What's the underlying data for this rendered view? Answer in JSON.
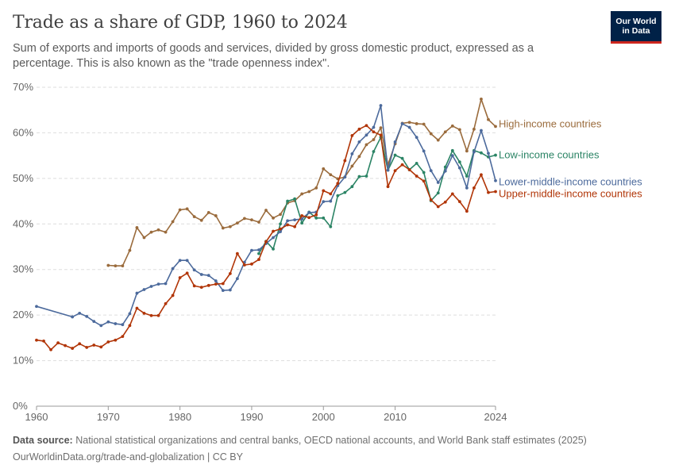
{
  "header": {
    "title": "Trade as a share of GDP, 1960 to 2024",
    "subtitle": "Sum of exports and imports of goods and services, divided by gross domestic product, expressed as a percentage. This is also known as the \"trade openness index\".",
    "logo_line1": "Our World",
    "logo_line2": "in Data"
  },
  "footer": {
    "source_label": "Data source:",
    "source_text": "National statistical organizations and central banks, OECD national accounts, and World Bank staff estimates (2025)",
    "url_text": "OurWorldinData.org/trade-and-globalization | CC BY"
  },
  "colors": {
    "High-income countries": "#9a6b3c",
    "Low-income countries": "#2b8465",
    "Lower-middle-income countries": "#4c6a9c",
    "Upper-middle-income countries": "#b13507",
    "grid": "#dddddd",
    "axis_text": "#666666"
  },
  "chart_data": {
    "type": "line",
    "xlabel": "",
    "ylabel": "",
    "xlim": [
      1960,
      2024
    ],
    "ylim": [
      0,
      70
    ],
    "grid": "horizontal dashed",
    "legend": "labels at line ends (right)",
    "y_ticks": [
      "0%",
      "10%",
      "20%",
      "30%",
      "40%",
      "50%",
      "60%",
      "70%"
    ],
    "x_ticks": [
      "1960",
      "1970",
      "1980",
      "1990",
      "2000",
      "2010",
      "2024"
    ],
    "x_tick_values": [
      1960,
      1970,
      1980,
      1990,
      2000,
      2010,
      2024
    ],
    "series": [
      {
        "name": "High-income countries",
        "x": [
          1970,
          1971,
          1972,
          1973,
          1974,
          1975,
          1976,
          1977,
          1978,
          1979,
          1980,
          1981,
          1982,
          1983,
          1984,
          1985,
          1986,
          1987,
          1988,
          1989,
          1990,
          1991,
          1992,
          1993,
          1994,
          1995,
          1996,
          1997,
          1998,
          1999,
          2000,
          2001,
          2002,
          2003,
          2004,
          2005,
          2006,
          2007,
          2008,
          2009,
          2010,
          2011,
          2012,
          2013,
          2014,
          2015,
          2016,
          2017,
          2018,
          2019,
          2020,
          2021,
          2022,
          2023,
          2024
        ],
        "values": [
          30.9,
          30.8,
          30.8,
          34.2,
          39.2,
          37.0,
          38.2,
          38.7,
          38.2,
          40.5,
          43.1,
          43.3,
          41.6,
          40.8,
          42.5,
          41.8,
          39.1,
          39.4,
          40.2,
          41.2,
          40.9,
          40.4,
          43.0,
          41.3,
          42.1,
          44.6,
          45.1,
          46.6,
          47.1,
          47.9,
          52.1,
          50.8,
          49.9,
          50.3,
          52.7,
          54.8,
          57.4,
          58.5,
          61.1,
          53.0,
          57.6,
          62.1,
          62.3,
          62.0,
          61.9,
          59.8,
          58.4,
          60.2,
          61.5,
          60.7,
          56.0,
          60.8,
          67.4,
          62.9,
          61.4
        ]
      },
      {
        "name": "Low-income countries",
        "x": [
          1991,
          1992,
          1993,
          1994,
          1995,
          1996,
          1997,
          1998,
          1999,
          2000,
          2001,
          2002,
          2003,
          2004,
          2005,
          2006,
          2007,
          2008,
          2009,
          2010,
          2011,
          2012,
          2013,
          2014,
          2015,
          2016,
          2017,
          2018,
          2019,
          2020,
          2021,
          2022,
          2023,
          2024
        ],
        "values": [
          33.5,
          36.2,
          34.5,
          40.0,
          45.0,
          45.5,
          40.2,
          42.6,
          41.3,
          41.3,
          39.4,
          46.2,
          46.9,
          48.2,
          50.4,
          50.5,
          55.9,
          59.0,
          51.8,
          55.1,
          54.4,
          51.9,
          53.3,
          51.3,
          45.1,
          46.8,
          52.5,
          56.1,
          53.6,
          50.5,
          56.1,
          55.6,
          54.7,
          55.1
        ]
      },
      {
        "name": "Lower-middle-income countries",
        "x": [
          1960,
          1965,
          1966,
          1967,
          1968,
          1969,
          1970,
          1971,
          1972,
          1973,
          1974,
          1975,
          1976,
          1977,
          1978,
          1979,
          1980,
          1981,
          1982,
          1983,
          1984,
          1985,
          1986,
          1987,
          1988,
          1989,
          1990,
          1991,
          1992,
          1993,
          1994,
          1995,
          1996,
          1997,
          1998,
          1999,
          2000,
          2001,
          2002,
          2003,
          2004,
          2005,
          2006,
          2007,
          2008,
          2009,
          2010,
          2011,
          2012,
          2013,
          2014,
          2015,
          2016,
          2017,
          2018,
          2019,
          2020,
          2021,
          2022,
          2023,
          2024
        ],
        "values": [
          21.9,
          19.6,
          20.4,
          19.7,
          18.6,
          17.7,
          18.5,
          18.1,
          17.9,
          20.3,
          24.8,
          25.6,
          26.3,
          26.8,
          26.9,
          30.2,
          32.0,
          32.0,
          29.9,
          28.9,
          28.7,
          27.5,
          25.4,
          25.5,
          28.0,
          31.6,
          34.2,
          34.3,
          35.7,
          37.0,
          38.3,
          40.7,
          40.9,
          41.1,
          42.5,
          42.6,
          44.9,
          45.0,
          48.4,
          50.3,
          55.4,
          58.0,
          59.5,
          61.2,
          66.0,
          51.8,
          58.0,
          62.0,
          61.2,
          59.0,
          56.0,
          51.7,
          49.1,
          51.6,
          55.0,
          52.3,
          47.9,
          55.8,
          60.5,
          55.5,
          49.5
        ]
      },
      {
        "name": "Upper-middle-income countries",
        "x": [
          1960,
          1961,
          1962,
          1963,
          1964,
          1965,
          1966,
          1967,
          1968,
          1969,
          1970,
          1971,
          1972,
          1973,
          1974,
          1975,
          1976,
          1977,
          1978,
          1979,
          1980,
          1981,
          1982,
          1983,
          1984,
          1985,
          1986,
          1987,
          1988,
          1989,
          1990,
          1991,
          1992,
          1993,
          1994,
          1995,
          1996,
          1997,
          1998,
          1999,
          2000,
          2001,
          2002,
          2003,
          2004,
          2005,
          2006,
          2007,
          2008,
          2009,
          2010,
          2011,
          2012,
          2013,
          2014,
          2015,
          2016,
          2017,
          2018,
          2019,
          2020,
          2021,
          2022,
          2023,
          2024
        ],
        "values": [
          14.5,
          14.3,
          12.4,
          13.9,
          13.3,
          12.7,
          13.7,
          12.9,
          13.4,
          13.0,
          14.1,
          14.5,
          15.3,
          17.7,
          21.5,
          20.4,
          19.9,
          19.9,
          22.5,
          24.3,
          28.2,
          29.2,
          26.4,
          26.1,
          26.5,
          26.8,
          26.9,
          29.1,
          33.5,
          31.0,
          31.2,
          32.2,
          36.1,
          38.4,
          38.9,
          39.8,
          39.4,
          41.8,
          41.4,
          42.0,
          47.3,
          46.6,
          48.9,
          53.9,
          59.4,
          60.8,
          61.6,
          60.2,
          59.5,
          48.2,
          51.7,
          53.0,
          51.9,
          50.5,
          49.4,
          45.3,
          43.8,
          44.8,
          46.6,
          44.9,
          42.8,
          47.9,
          50.8,
          46.9,
          47.1
        ]
      }
    ]
  }
}
